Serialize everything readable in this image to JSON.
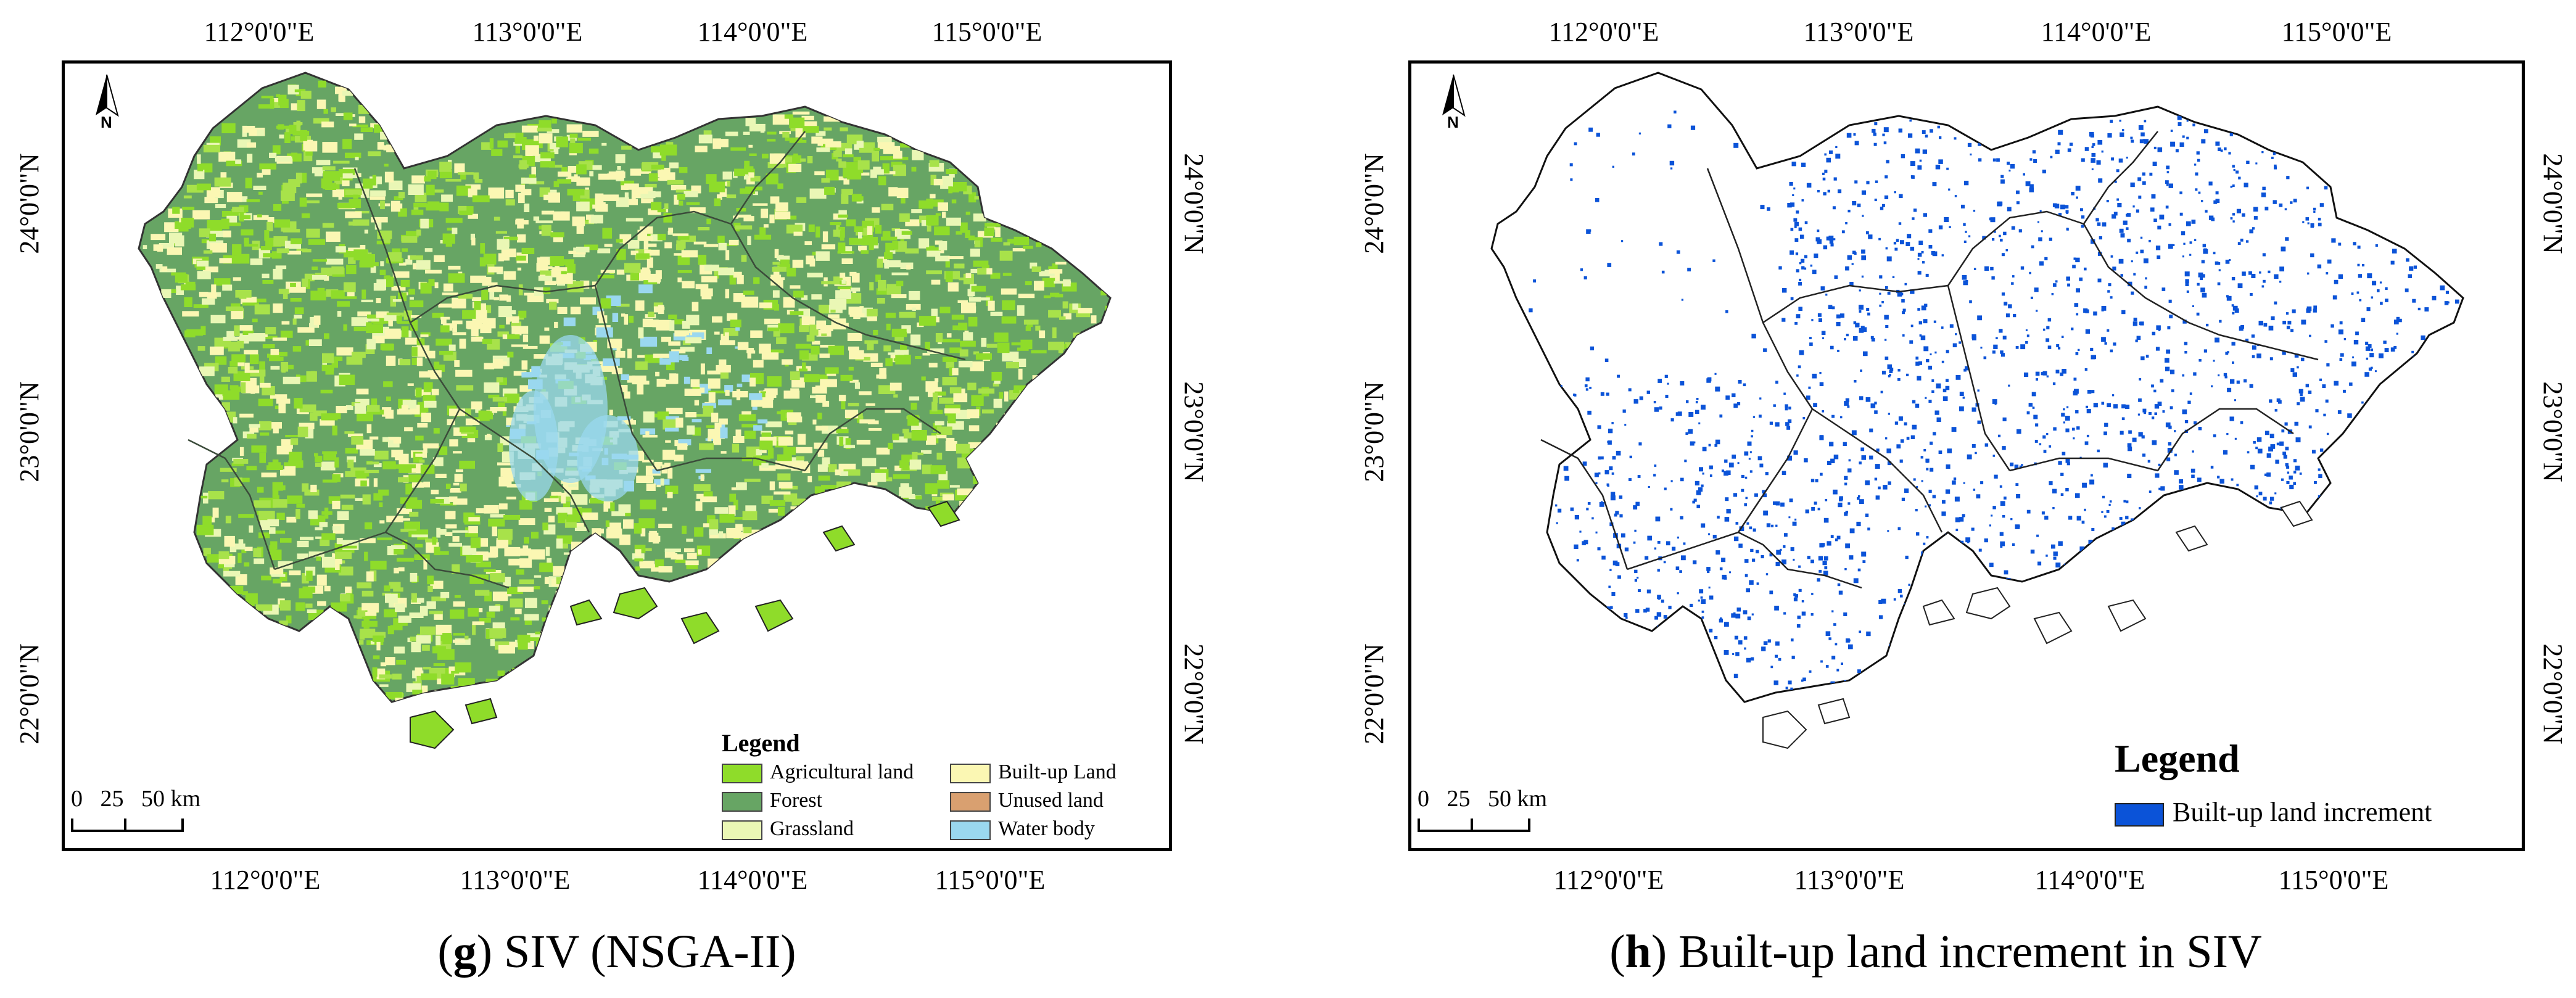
{
  "panels": {
    "g": {
      "caption_letter": "g",
      "caption_rest": " SIV (NSGA-II)",
      "lon_ticks": [
        "112°0'0\"E",
        "113°0'0\"E",
        "114°0'0\"E",
        "115°0'0\"E"
      ],
      "lat_ticks": [
        "24°0'0\"N",
        "23°0'0\"N",
        "22°0'0\"N"
      ],
      "scale_text": "0   25   50 km",
      "north_label": "N",
      "legend": {
        "title": "Legend",
        "items": [
          {
            "label": "Agricultural land",
            "color": "#8fdc2a"
          },
          {
            "label": "Forest",
            "color": "#67a564"
          },
          {
            "label": "Grassland",
            "color": "#eaf7b5"
          },
          {
            "label": "Built-up Land",
            "color": "#fbf7b3"
          },
          {
            "label": "Unused land",
            "color": "#d9a070"
          },
          {
            "label": "Water body",
            "color": "#9ad8ef"
          }
        ]
      }
    },
    "h": {
      "caption_letter": "h",
      "caption_rest": " Built-up land increment in SIV",
      "lon_ticks": [
        "112°0'0\"E",
        "113°0'0\"E",
        "114°0'0\"E",
        "115°0'0\"E"
      ],
      "lat_ticks": [
        "24°0'0\"N",
        "23°0'0\"N",
        "22°0'0\"N"
      ],
      "scale_text": "0   25   50 km",
      "north_label": "N",
      "legend": {
        "title": "Legend",
        "items": [
          {
            "label": "Built-up land increment",
            "color": "#0b53d8"
          }
        ]
      }
    }
  }
}
